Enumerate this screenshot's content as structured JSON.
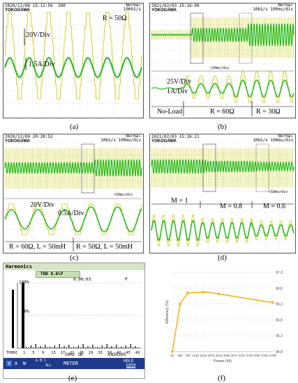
{
  "panels": {
    "a": {
      "caption": "(a)",
      "timestamp": "2020/12/08 15:12:56",
      "brand": "YOKOGAWA",
      "mode": "Normal",
      "rate": "100kS/s",
      "counter": "300",
      "labels": {
        "resistance": "R = 50Ω",
        "vdiv": "20V/Div",
        "idiv": "1.5A/Div"
      }
    },
    "b": {
      "caption": "(b)",
      "timestamp": "2021/02/03 15:16:09",
      "brand": "YOKOGAWA",
      "mode": "Normal",
      "rate": "10kS/s 100ms/div",
      "zoom": "×10ms/div",
      "labels": {
        "vdiv": "25V/Div",
        "idiv": "1A/Div",
        "seg1": "No-Load",
        "seg2": "R = 60Ω",
        "seg3": "R = 30Ω"
      }
    },
    "c": {
      "caption": "(c)",
      "timestamp": "2020/12/09 20:20:52",
      "brand": "YOKOGAWA",
      "mode": "Normal",
      "rate": "10kS/s 100ms/div",
      "zoom": "×10ms/div",
      "labels": {
        "vdiv": "20V/Div",
        "idiv": "0.5A/Div",
        "seg1": "R = 60Ω, L = 50mH",
        "seg2": "R = 50Ω, L = 50mH"
      }
    },
    "d": {
      "caption": "(d)",
      "timestamp": "2021/02/03 15:26:21",
      "brand": "YOKOGAWA",
      "mode": "Normal",
      "rate": "10kS/s 100ms/div",
      "zoom": "×10ms/div",
      "labels": {
        "seg1": "M = 1",
        "seg2": "M = 0.8",
        "seg3": "M = 0.6"
      }
    },
    "e": {
      "caption": "(e)",
      "title": "Harmonics",
      "thd": "THD 8.6%f",
      "time": "0:00:03",
      "p_label": "P",
      "y100": "100%",
      "y50": "50%",
      "x_ticks": [
        "THDDC",
        "1",
        "5",
        "9",
        "13",
        "17",
        "21",
        "25",
        "29",
        "33",
        "37",
        "41",
        "45",
        "49"
      ],
      "freq": "50Hz 1Ø",
      "standard": "EN50160",
      "softkeys": {
        "v": "V",
        "a": "A",
        "w": "W",
        "abc": "A B C",
        "all": "ALL",
        "meter": "METER",
        "hold": "HOLD",
        "run": "RUN"
      }
    },
    "f": {
      "caption": "(f)"
    }
  },
  "chart_data": {
    "type": "line",
    "title": "",
    "xlabel": "Power (W)",
    "ylabel": "Efficiency (%)",
    "x": [
      52,
      405,
      783,
      1145,
      1510,
      1876,
      2242,
      2606,
      2971,
      3337,
      3702,
      4067,
      4432,
      4798
    ],
    "x_tick_labels": [
      "52",
      "405",
      "783",
      "1145",
      "1510",
      "1876",
      "2242",
      "2606",
      "2971",
      "3337",
      "3702",
      "4067",
      "4432",
      "4798"
    ],
    "series": [
      {
        "values": [
          94.8,
          96.3,
          96.65,
          96.66,
          96.68,
          96.66,
          96.62,
          96.58,
          96.54,
          96.5,
          96.46,
          96.42,
          96.38,
          96.35
        ],
        "color": "#f2b51c"
      }
    ],
    "y_ticks": [
      "97.3",
      "96.8",
      "96.3",
      "95.8",
      "95.3",
      "94.8"
    ],
    "ylim": [
      94.8,
      97.3
    ],
    "grid": true
  }
}
